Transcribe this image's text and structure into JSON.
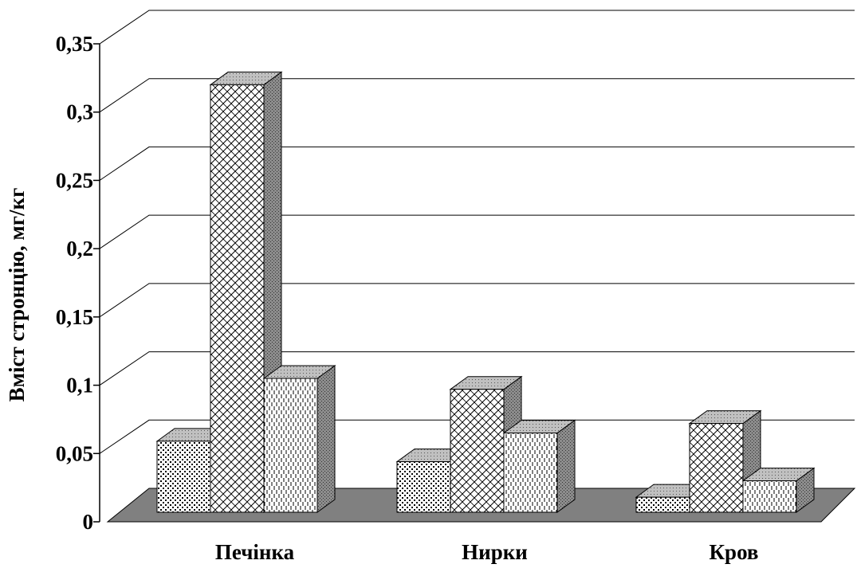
{
  "chart_data": {
    "type": "bar",
    "style": "3d-clustered-column",
    "categories": [
      "Печінка",
      "Нирки",
      "Кров"
    ],
    "series": [
      {
        "values": [
          0.052,
          0.037,
          0.011
        ],
        "pattern": "dots"
      },
      {
        "values": [
          0.313,
          0.09,
          0.065
        ],
        "pattern": "diagonal-cross"
      },
      {
        "values": [
          0.098,
          0.058,
          0.023
        ],
        "pattern": "vertical-dashes"
      }
    ],
    "ylabel": "Вміст стронцію, мг/кг",
    "ylim": [
      0,
      0.35
    ],
    "yticks": [
      "0",
      "0,05",
      "0,1",
      "0,15",
      "0,2",
      "0,25",
      "0,3",
      "0,35"
    ],
    "grid": true,
    "legend": "none",
    "colors": {
      "floor": "#808080",
      "top": "#c0c0c0",
      "side": "#8c8c8c",
      "front": "#ffffff",
      "stroke": "#000000",
      "grid": "#000000"
    }
  }
}
